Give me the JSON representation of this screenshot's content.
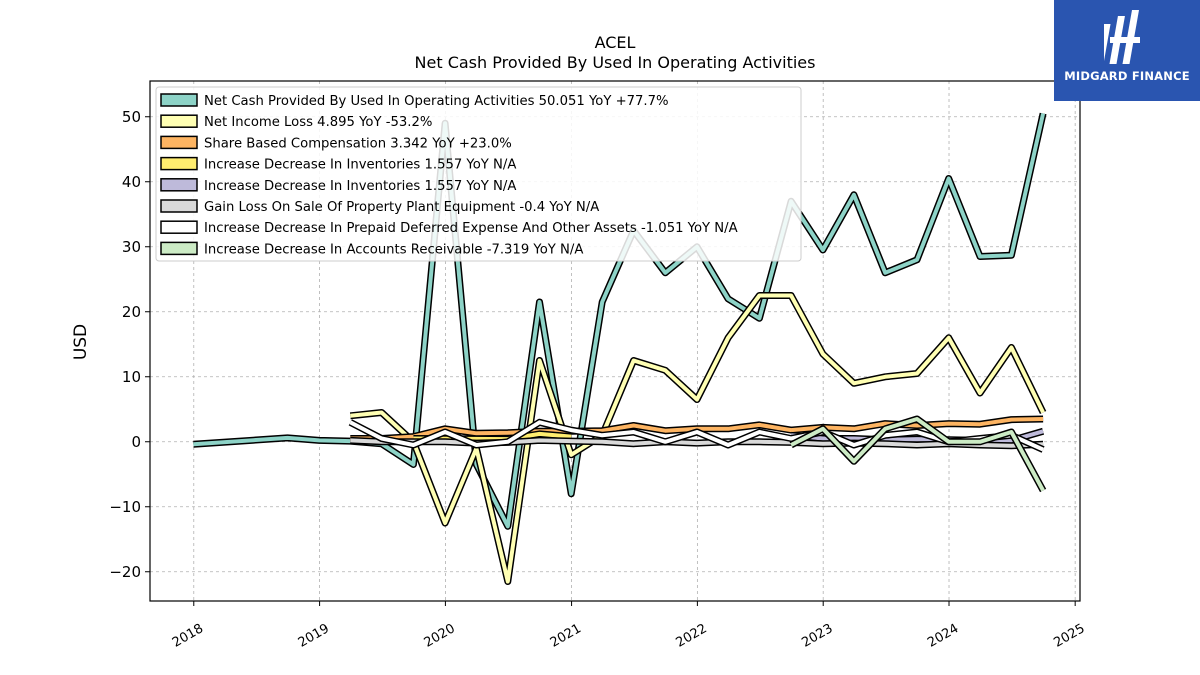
{
  "chart_data": {
    "type": "line",
    "title": "ACEL",
    "subtitle": "Net Cash Provided By Used In Operating Activities",
    "ylabel": "USD",
    "xlabel": "",
    "ylim": [
      -24.5,
      55.5
    ],
    "xlim": [
      "2017-08-27",
      "2025-01-15"
    ],
    "yticks": [
      -20,
      -10,
      0,
      10,
      20,
      30,
      40,
      50
    ],
    "xticks": [
      "2018",
      "2019",
      "2020",
      "2021",
      "2022",
      "2023",
      "2024",
      "2025"
    ],
    "grid": true,
    "legend_position": "top-left",
    "series": [
      {
        "name": "Net Cash Provided By Used In Operating Activities  50.051 YoY +77.7%",
        "color": "#8dd3c7",
        "points": [
          [
            "2017-12-31",
            -0.4
          ],
          [
            "2018-09-30",
            0.6
          ],
          [
            "2018-12-31",
            0.2
          ],
          [
            "2019-03-31",
            0.1
          ],
          [
            "2019-06-30",
            -0.3
          ],
          [
            "2019-09-30",
            -3.5
          ],
          [
            "2019-12-31",
            49.0
          ],
          [
            "2020-03-31",
            -3.5
          ],
          [
            "2020-06-30",
            -13.0
          ],
          [
            "2020-09-30",
            21.5
          ],
          [
            "2020-12-31",
            -8.0
          ],
          [
            "2021-03-31",
            21.5
          ],
          [
            "2021-06-30",
            32.5
          ],
          [
            "2021-09-30",
            26.0
          ],
          [
            "2021-12-31",
            30.0
          ],
          [
            "2022-03-31",
            22.0
          ],
          [
            "2022-06-30",
            19.0
          ],
          [
            "2022-09-30",
            37.0
          ],
          [
            "2022-12-31",
            29.5
          ],
          [
            "2023-03-31",
            38.0
          ],
          [
            "2023-06-30",
            26.0
          ],
          [
            "2023-09-30",
            28.0
          ],
          [
            "2023-12-31",
            40.5
          ],
          [
            "2024-03-31",
            28.5
          ],
          [
            "2024-06-30",
            28.7
          ],
          [
            "2024-09-30",
            50.5
          ]
        ]
      },
      {
        "name": "Net Income Loss  4.895 YoY -53.2%",
        "color": "#ffffb3",
        "points": [
          [
            "2019-03-31",
            4.0
          ],
          [
            "2019-06-30",
            4.5
          ],
          [
            "2019-09-30",
            0.0
          ],
          [
            "2019-12-31",
            -12.5
          ],
          [
            "2020-03-31",
            -1.0
          ],
          [
            "2020-06-30",
            -21.5
          ],
          [
            "2020-09-30",
            12.5
          ],
          [
            "2020-12-31",
            -2.0
          ],
          [
            "2021-03-31",
            1.0
          ],
          [
            "2021-06-30",
            12.5
          ],
          [
            "2021-09-30",
            11.0
          ],
          [
            "2021-12-31",
            6.5
          ],
          [
            "2022-03-31",
            16.0
          ],
          [
            "2022-06-30",
            22.5
          ],
          [
            "2022-09-30",
            22.5
          ],
          [
            "2022-12-31",
            13.5
          ],
          [
            "2023-03-31",
            9.0
          ],
          [
            "2023-06-30",
            10.0
          ],
          [
            "2023-09-30",
            10.5
          ],
          [
            "2023-12-31",
            16.0
          ],
          [
            "2024-03-31",
            7.5
          ],
          [
            "2024-06-30",
            14.5
          ],
          [
            "2024-09-30",
            4.5
          ]
        ]
      },
      {
        "name": "Share Based Compensation  3.342 YoY +23.0%",
        "color": "#fdb462",
        "points": [
          [
            "2019-03-31",
            0.5
          ],
          [
            "2019-06-30",
            0.5
          ],
          [
            "2019-09-30",
            0.8
          ],
          [
            "2019-12-31",
            2.0
          ],
          [
            "2020-03-31",
            1.3
          ],
          [
            "2020-06-30",
            1.4
          ],
          [
            "2020-09-30",
            1.6
          ],
          [
            "2020-12-31",
            1.6
          ],
          [
            "2021-03-31",
            1.7
          ],
          [
            "2021-06-30",
            2.5
          ],
          [
            "2021-09-30",
            1.7
          ],
          [
            "2021-12-31",
            2.0
          ],
          [
            "2022-03-31",
            2.0
          ],
          [
            "2022-06-30",
            2.6
          ],
          [
            "2022-09-30",
            1.8
          ],
          [
            "2022-12-31",
            2.2
          ],
          [
            "2023-03-31",
            2.0
          ],
          [
            "2023-06-30",
            2.8
          ],
          [
            "2023-09-30",
            2.5
          ],
          [
            "2023-12-31",
            2.8
          ],
          [
            "2024-03-31",
            2.7
          ],
          [
            "2024-06-30",
            3.4
          ],
          [
            "2024-09-30",
            3.5
          ]
        ]
      },
      {
        "name": "Increase Decrease In Inventories  1.557 YoY N/A",
        "color": "#ffed6f",
        "points": [
          [
            "2019-09-30",
            0.5
          ],
          [
            "2020-06-30",
            0.4
          ],
          [
            "2020-09-30",
            1.2
          ],
          [
            "2020-12-31",
            0.8
          ]
        ]
      },
      {
        "name": "Increase Decrease In Inventories  1.557 YoY N/A",
        "color": "#bebada",
        "points": [
          [
            "2022-09-30",
            1.0
          ],
          [
            "2022-12-31",
            0.5
          ],
          [
            "2023-03-31",
            0.5
          ],
          [
            "2023-06-30",
            0.3
          ],
          [
            "2023-09-30",
            0.4
          ],
          [
            "2023-12-31",
            0.3
          ],
          [
            "2024-03-31",
            0.2
          ],
          [
            "2024-06-30",
            0.2
          ],
          [
            "2024-09-30",
            1.6
          ]
        ]
      },
      {
        "name": "Gain Loss On Sale Of Property Plant Equipment  -0.4 YoY N/A",
        "color": "#d9d9d9",
        "points": [
          [
            "2019-03-31",
            0.2
          ],
          [
            "2019-06-30",
            0.0
          ],
          [
            "2019-09-30",
            0.0
          ],
          [
            "2019-12-31",
            0.0
          ],
          [
            "2020-03-31",
            -0.2
          ],
          [
            "2020-06-30",
            -0.1
          ],
          [
            "2020-09-30",
            0.2
          ],
          [
            "2020-12-31",
            0.1
          ],
          [
            "2021-03-31",
            0.0
          ],
          [
            "2021-06-30",
            -0.3
          ],
          [
            "2021-09-30",
            0.0
          ],
          [
            "2021-12-31",
            -0.2
          ],
          [
            "2022-03-31",
            0.0
          ],
          [
            "2022-06-30",
            0.0
          ],
          [
            "2022-09-30",
            -0.1
          ],
          [
            "2022-12-31",
            -0.3
          ],
          [
            "2023-03-31",
            -0.2
          ],
          [
            "2023-06-30",
            -0.3
          ],
          [
            "2023-09-30",
            -0.5
          ],
          [
            "2023-12-31",
            -0.3
          ],
          [
            "2024-03-31",
            -0.5
          ],
          [
            "2024-06-30",
            -0.6
          ],
          [
            "2024-09-30",
            -0.4
          ]
        ]
      },
      {
        "name": "Increase Decrease In Prepaid Deferred Expense And Other Assets  -1.051 YoY N/A",
        "color": "#ffffff",
        "points": [
          [
            "2019-03-31",
            3.0
          ],
          [
            "2019-06-30",
            0.5
          ],
          [
            "2019-09-30",
            -0.5
          ],
          [
            "2019-12-31",
            1.5
          ],
          [
            "2020-03-31",
            -0.5
          ],
          [
            "2020-06-30",
            0.0
          ],
          [
            "2020-09-30",
            3.0
          ],
          [
            "2020-12-31",
            1.8
          ],
          [
            "2021-03-31",
            1.0
          ],
          [
            "2021-06-30",
            1.5
          ],
          [
            "2021-09-30",
            0.0
          ],
          [
            "2021-12-31",
            1.5
          ],
          [
            "2022-03-31",
            -0.5
          ],
          [
            "2022-06-30",
            1.5
          ],
          [
            "2022-09-30",
            0.5
          ],
          [
            "2022-12-31",
            1.5
          ],
          [
            "2023-03-31",
            -0.5
          ],
          [
            "2023-06-30",
            1.0
          ],
          [
            "2023-09-30",
            1.5
          ],
          [
            "2023-12-31",
            0.0
          ],
          [
            "2024-03-31",
            0.5
          ],
          [
            "2024-06-30",
            1.0
          ],
          [
            "2024-09-30",
            -1.2
          ]
        ]
      },
      {
        "name": "Increase Decrease In Accounts Receivable  -7.319 YoY N/A",
        "color": "#ccebc5",
        "points": [
          [
            "2022-09-30",
            -0.5
          ],
          [
            "2022-12-31",
            2.0
          ],
          [
            "2023-03-31",
            -3.0
          ],
          [
            "2023-06-30",
            2.0
          ],
          [
            "2023-09-30",
            3.5
          ],
          [
            "2023-12-31",
            0.0
          ],
          [
            "2024-03-31",
            0.0
          ],
          [
            "2024-06-30",
            1.5
          ],
          [
            "2024-09-30",
            -7.5
          ]
        ]
      }
    ]
  },
  "brand": {
    "name": "MIDGARD FINANCE",
    "background": "#2a55b0"
  }
}
